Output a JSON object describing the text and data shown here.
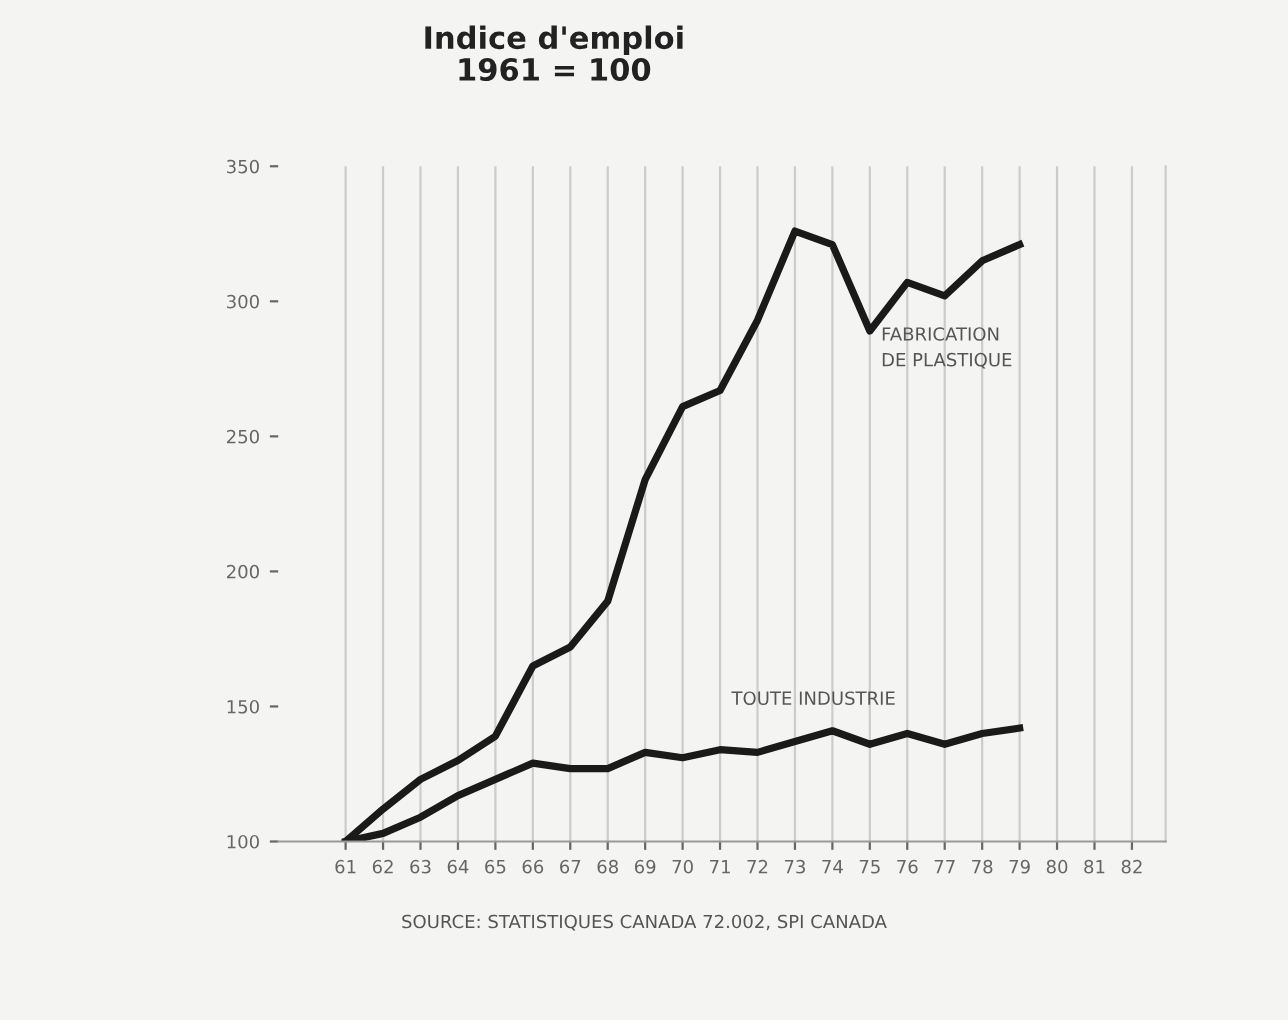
{
  "chart_data": {
    "type": "line",
    "title": "Indice d'emploi\n1961 = 100",
    "categories": [
      "61",
      "62",
      "63",
      "64",
      "65",
      "66",
      "67",
      "68",
      "69",
      "70",
      "71",
      "72",
      "73",
      "74",
      "75",
      "76",
      "77",
      "78",
      "79",
      "80",
      "81",
      "82"
    ],
    "series": [
      {
        "name": "FABRICATION\nDE PLASTIQUE",
        "color": "#1a1a1a",
        "values": [
          100,
          112,
          123,
          130,
          139,
          165,
          172,
          189,
          234,
          261,
          267,
          293,
          326,
          321,
          289,
          307,
          302,
          315,
          321,
          null,
          null,
          null
        ]
      },
      {
        "name": "TOUTE INDUSTRIE",
        "color": "#1a1a1a",
        "values": [
          100,
          103,
          109,
          117,
          123,
          129,
          127,
          127,
          133,
          131,
          134,
          133,
          137,
          141,
          136,
          140,
          136,
          140,
          142,
          null,
          null,
          null
        ]
      }
    ],
    "ylim": [
      100,
      350
    ],
    "yticks": [
      100,
      150,
      200,
      250,
      300,
      350
    ],
    "grid": "x",
    "legend": false,
    "marker": "none",
    "line_style": "solid",
    "annotations": [
      "SOURCE: STATISTIQUES CANADA 72.002, SPI CANADA"
    ]
  }
}
